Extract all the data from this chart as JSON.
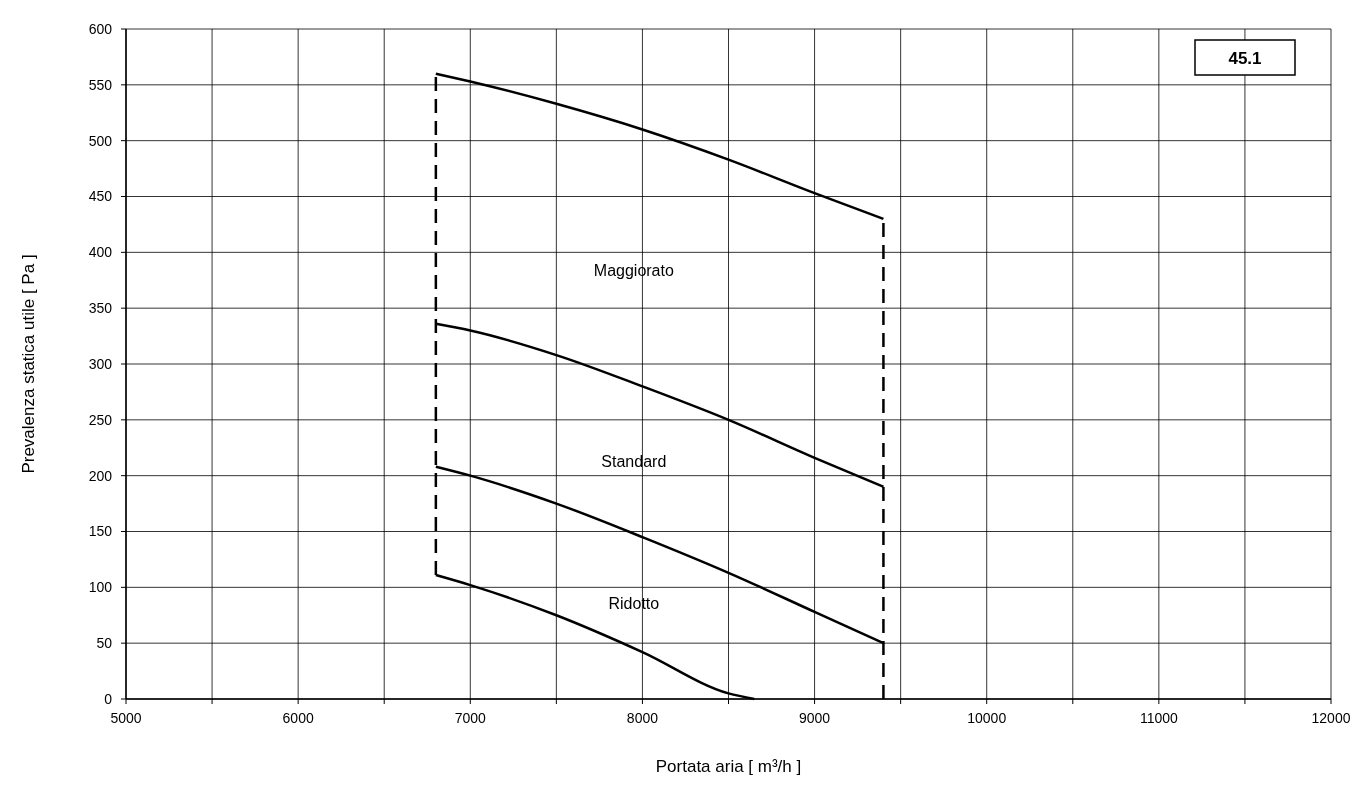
{
  "chart_data": {
    "type": "line",
    "xlabel": "Portata aria [ m³/h ]",
    "ylabel": "Prevalenza statica utile [ Pa ]",
    "xlim": [
      5000,
      12000
    ],
    "xticks": [
      5000,
      {
        "value": 5500,
        "label": null
      },
      6000,
      {
        "value": 6500,
        "label": null
      },
      7000,
      {
        "value": 7500,
        "label": null
      },
      8000,
      {
        "value": 8500,
        "label": null
      },
      9000,
      {
        "value": 9500,
        "label": null
      },
      10000,
      {
        "value": 10500,
        "label": null
      },
      11000,
      {
        "value": 11500,
        "label": null
      },
      12000
    ],
    "ylim": [
      0,
      600
    ],
    "yticks": [
      0,
      50,
      100,
      150,
      200,
      250,
      300,
      350,
      400,
      450,
      500,
      550,
      600
    ],
    "grid": true,
    "series": [
      {
        "color": "#000000",
        "x": [
          6800,
          7000,
          7500,
          8000,
          8500,
          9000,
          9400
        ],
        "values": [
          560,
          553,
          533,
          510,
          483,
          453,
          430
        ]
      },
      {
        "color": "#000000",
        "x": [
          6800,
          7000,
          7500,
          8000,
          8500,
          9000,
          9400
        ],
        "values": [
          336,
          330,
          308,
          280,
          250,
          216,
          190
        ]
      },
      {
        "color": "#000000",
        "x": [
          6800,
          7000,
          7500,
          8000,
          8500,
          9000,
          9400
        ],
        "values": [
          208,
          200,
          175,
          145,
          113,
          78,
          50
        ]
      },
      {
        "color": "#000000",
        "x": [
          6800,
          7000,
          7500,
          8000,
          8500,
          8650
        ],
        "values": [
          111,
          102,
          75,
          42,
          5,
          0
        ]
      },
      {
        "color": "#000000",
        "line_style": "dashed",
        "x": [
          6800,
          6800
        ],
        "values": [
          111,
          560
        ]
      },
      {
        "color": "#000000",
        "line_style": "dashed",
        "x": [
          9400,
          9400
        ],
        "values": [
          0,
          430
        ]
      }
    ],
    "annotations": [
      "Maggiorato",
      "Standard",
      "Ridotto",
      "45.1"
    ]
  }
}
